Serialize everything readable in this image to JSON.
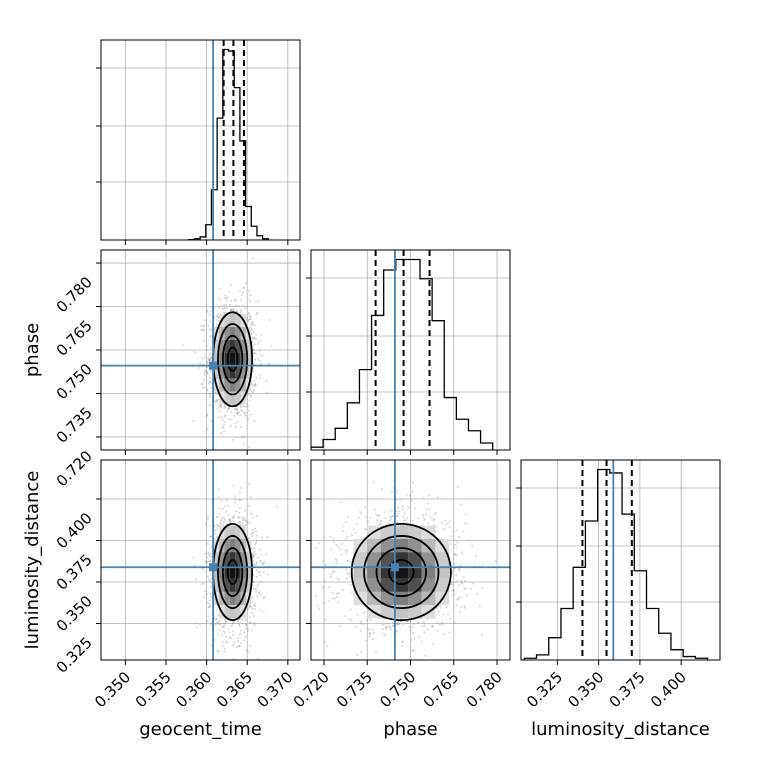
{
  "chart_data": {
    "type": "corner",
    "parameters": [
      "geocent_time",
      "phase",
      "luminosity_distance"
    ],
    "xlabels": [
      "geocent_time",
      "phase",
      "luminosity_distance"
    ],
    "ylabels": [
      "",
      "phase",
      "luminosity_distance"
    ],
    "ranges": [
      [
        0.347,
        0.3715
      ],
      [
        0.7155,
        0.7845
      ],
      [
        0.303,
        0.4235
      ]
    ],
    "ticks": {
      "geocent_time": [
        "0.350",
        "0.355",
        "0.360",
        "0.365",
        "0.370"
      ],
      "phase": [
        "0.720",
        "0.735",
        "0.750",
        "0.765",
        "0.780"
      ],
      "luminosity_distance": [
        "0.325",
        "0.350",
        "0.375",
        "0.400"
      ]
    },
    "truths": [
      0.3608,
      0.7446,
      0.3589
    ],
    "truth_color": "#4682b4",
    "quantiles": [
      {
        "param": "geocent_time",
        "values": [
          0.3621,
          0.3633,
          0.3646
        ]
      },
      {
        "param": "phase",
        "values": [
          0.7379,
          0.7476,
          0.7566
        ]
      },
      {
        "param": "luminosity_distance",
        "values": [
          0.3402,
          0.3548,
          0.3701
        ]
      }
    ],
    "histograms": [
      {
        "param": "geocent_time",
        "bins": [
          0.3578,
          0.3585,
          0.3592,
          0.3599,
          0.3606,
          0.3613,
          0.362,
          0.3627,
          0.3634,
          0.3641,
          0.3648,
          0.3655,
          0.3662,
          0.3669,
          0.3676
        ],
        "counts": [
          2,
          8,
          20,
          100,
          330,
          800,
          1250,
          1240,
          1000,
          650,
          220,
          90,
          28,
          8
        ]
      },
      {
        "param": "phase",
        "bins": [
          0.7155,
          0.7197,
          0.7239,
          0.7281,
          0.7323,
          0.7365,
          0.7407,
          0.7449,
          0.7491,
          0.7533,
          0.7575,
          0.7617,
          0.7659,
          0.7701,
          0.7743,
          0.7785
        ],
        "counts": [
          8,
          30,
          62,
          135,
          230,
          385,
          515,
          545,
          545,
          490,
          370,
          150,
          88,
          55,
          20
        ]
      },
      {
        "param": "luminosity_distance",
        "bins": [
          0.305,
          0.3124,
          0.3198,
          0.3272,
          0.3346,
          0.342,
          0.3494,
          0.3568,
          0.3642,
          0.3716,
          0.379,
          0.3864,
          0.3938,
          0.4012,
          0.4086,
          0.416
        ],
        "counts": [
          5,
          15,
          65,
          150,
          270,
          405,
          555,
          545,
          425,
          260,
          150,
          78,
          30,
          10,
          5
        ]
      }
    ],
    "density_panels": [
      {
        "x": "geocent_time",
        "y": "phase",
        "center": [
          0.3632,
          0.7468
        ],
        "sigma": [
          0.0012,
          0.0081
        ]
      },
      {
        "x": "geocent_time",
        "y": "luminosity_distance",
        "center": [
          0.3632,
          0.356
        ],
        "sigma": [
          0.0012,
          0.0145
        ]
      },
      {
        "x": "phase",
        "y": "luminosity_distance",
        "center": [
          0.7468,
          0.356
        ],
        "sigma": [
          0.0086,
          0.0145
        ]
      }
    ]
  }
}
